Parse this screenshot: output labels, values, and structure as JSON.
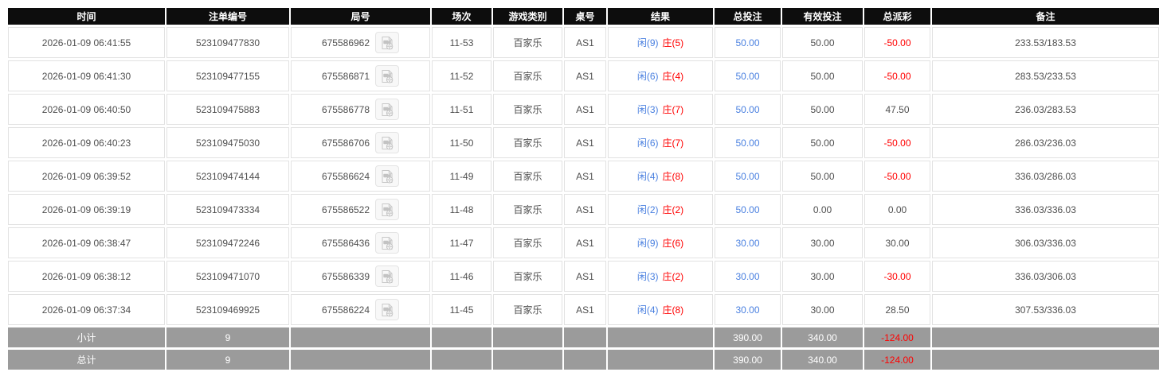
{
  "colors": {
    "header_bg": "#0d0d0d",
    "header_text": "#ffffff",
    "row_border": "#e2e2e2",
    "body_text": "#4f4f4f",
    "player_blue": "#4a80e0",
    "banker_red": "#ff0000",
    "negative_red": "#ff0000",
    "footer_bg": "#9b9b9b",
    "footer_text": "#ffffff"
  },
  "icons": {
    "round_video_icon": "video-replay-icon"
  },
  "table": {
    "columns": [
      {
        "key": "time",
        "label": "时间"
      },
      {
        "key": "bet_id",
        "label": "注单编号"
      },
      {
        "key": "round_id",
        "label": "局号"
      },
      {
        "key": "session",
        "label": "场次"
      },
      {
        "key": "game_type",
        "label": "游戏类别"
      },
      {
        "key": "table_no",
        "label": "桌号"
      },
      {
        "key": "result",
        "label": "结果"
      },
      {
        "key": "total_bet",
        "label": "总投注"
      },
      {
        "key": "valid_bet",
        "label": "有效投注"
      },
      {
        "key": "payout",
        "label": "总派彩"
      },
      {
        "key": "remark",
        "label": "备注"
      }
    ],
    "rows": [
      {
        "time": "2026-01-09 06:41:55",
        "bet_id": "523109477830",
        "round_id": "675586962",
        "session": "11-53",
        "game_type": "百家乐",
        "table_no": "AS1",
        "result_player": "闲(9)",
        "result_banker": "庄(5)",
        "total_bet": "50.00",
        "valid_bet": "50.00",
        "payout": "-50.00",
        "remark": "233.53/183.53"
      },
      {
        "time": "2026-01-09 06:41:30",
        "bet_id": "523109477155",
        "round_id": "675586871",
        "session": "11-52",
        "game_type": "百家乐",
        "table_no": "AS1",
        "result_player": "闲(6)",
        "result_banker": "庄(4)",
        "total_bet": "50.00",
        "valid_bet": "50.00",
        "payout": "-50.00",
        "remark": "283.53/233.53"
      },
      {
        "time": "2026-01-09 06:40:50",
        "bet_id": "523109475883",
        "round_id": "675586778",
        "session": "11-51",
        "game_type": "百家乐",
        "table_no": "AS1",
        "result_player": "闲(3)",
        "result_banker": "庄(7)",
        "total_bet": "50.00",
        "valid_bet": "50.00",
        "payout": "47.50",
        "remark": "236.03/283.53"
      },
      {
        "time": "2026-01-09 06:40:23",
        "bet_id": "523109475030",
        "round_id": "675586706",
        "session": "11-50",
        "game_type": "百家乐",
        "table_no": "AS1",
        "result_player": "闲(6)",
        "result_banker": "庄(7)",
        "total_bet": "50.00",
        "valid_bet": "50.00",
        "payout": "-50.00",
        "remark": "286.03/236.03"
      },
      {
        "time": "2026-01-09 06:39:52",
        "bet_id": "523109474144",
        "round_id": "675586624",
        "session": "11-49",
        "game_type": "百家乐",
        "table_no": "AS1",
        "result_player": "闲(4)",
        "result_banker": "庄(8)",
        "total_bet": "50.00",
        "valid_bet": "50.00",
        "payout": "-50.00",
        "remark": "336.03/286.03"
      },
      {
        "time": "2026-01-09 06:39:19",
        "bet_id": "523109473334",
        "round_id": "675586522",
        "session": "11-48",
        "game_type": "百家乐",
        "table_no": "AS1",
        "result_player": "闲(2)",
        "result_banker": "庄(2)",
        "total_bet": "50.00",
        "valid_bet": "0.00",
        "payout": "0.00",
        "remark": "336.03/336.03"
      },
      {
        "time": "2026-01-09 06:38:47",
        "bet_id": "523109472246",
        "round_id": "675586436",
        "session": "11-47",
        "game_type": "百家乐",
        "table_no": "AS1",
        "result_player": "闲(9)",
        "result_banker": "庄(6)",
        "total_bet": "30.00",
        "valid_bet": "30.00",
        "payout": "30.00",
        "remark": "306.03/336.03"
      },
      {
        "time": "2026-01-09 06:38:12",
        "bet_id": "523109471070",
        "round_id": "675586339",
        "session": "11-46",
        "game_type": "百家乐",
        "table_no": "AS1",
        "result_player": "闲(3)",
        "result_banker": "庄(2)",
        "total_bet": "30.00",
        "valid_bet": "30.00",
        "payout": "-30.00",
        "remark": "336.03/306.03"
      },
      {
        "time": "2026-01-09 06:37:34",
        "bet_id": "523109469925",
        "round_id": "675586224",
        "session": "11-45",
        "game_type": "百家乐",
        "table_no": "AS1",
        "result_player": "闲(4)",
        "result_banker": "庄(8)",
        "total_bet": "30.00",
        "valid_bet": "30.00",
        "payout": "28.50",
        "remark": "307.53/336.03"
      }
    ],
    "footer_rows": [
      {
        "label": "小计",
        "count": "9",
        "total_bet": "390.00",
        "valid_bet": "340.00",
        "payout": "-124.00"
      },
      {
        "label": "总计",
        "count": "9",
        "total_bet": "390.00",
        "valid_bet": "340.00",
        "payout": "-124.00"
      }
    ]
  }
}
